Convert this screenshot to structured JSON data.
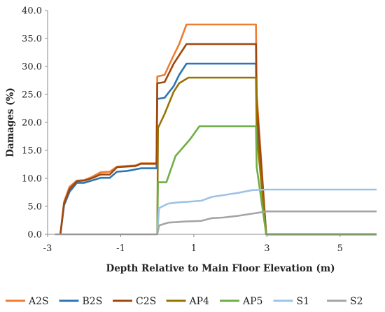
{
  "chart_data": {
    "type": "line",
    "xlabel": "Depth Relative to Main Floor Elevation (m)",
    "ylabel": "Damages (%)",
    "xlim": [
      -3,
      6
    ],
    "ylim": [
      0,
      40
    ],
    "x_ticks": [
      -3,
      -1,
      1,
      3,
      5
    ],
    "x_tick_labels": [
      "-3",
      "-1",
      "1",
      "3",
      "5"
    ],
    "y_ticks": [
      0,
      5,
      10,
      15,
      20,
      25,
      30,
      35,
      40
    ],
    "y_tick_labels": [
      "0.0",
      "5.0",
      "10.0",
      "15.0",
      "20.0",
      "25.0",
      "30.0",
      "35.0",
      "40.0"
    ],
    "grid": false,
    "legend_position": "bottom",
    "series": [
      {
        "name": "A2S",
        "color": "#ED7D31",
        "points": [
          [
            -2.65,
            0
          ],
          [
            -2.55,
            5.8
          ],
          [
            -2.4,
            8.5
          ],
          [
            -2.2,
            9.6
          ],
          [
            -2.0,
            9.7
          ],
          [
            -1.8,
            10.2
          ],
          [
            -1.55,
            11.1
          ],
          [
            -1.3,
            11.2
          ],
          [
            -1.1,
            12.1
          ],
          [
            -0.85,
            12.2
          ],
          [
            -0.6,
            12.3
          ],
          [
            -0.45,
            12.7
          ],
          [
            -0.02,
            12.7
          ],
          [
            0.0,
            28.2
          ],
          [
            0.2,
            28.5
          ],
          [
            0.45,
            32.0
          ],
          [
            0.6,
            34.0
          ],
          [
            0.8,
            37.5
          ],
          [
            2.7,
            37.5
          ],
          [
            2.72,
            25.0
          ],
          [
            2.98,
            0
          ],
          [
            6.0,
            0
          ]
        ]
      },
      {
        "name": "B2S",
        "color": "#2E75B6",
        "points": [
          [
            -2.65,
            0
          ],
          [
            -2.55,
            5.2
          ],
          [
            -2.4,
            7.6
          ],
          [
            -2.2,
            9.2
          ],
          [
            -2.0,
            9.2
          ],
          [
            -1.8,
            9.6
          ],
          [
            -1.55,
            10.1
          ],
          [
            -1.3,
            10.1
          ],
          [
            -1.1,
            11.2
          ],
          [
            -0.85,
            11.3
          ],
          [
            -0.6,
            11.6
          ],
          [
            -0.45,
            11.8
          ],
          [
            -0.02,
            11.8
          ],
          [
            0.0,
            24.2
          ],
          [
            0.2,
            24.4
          ],
          [
            0.45,
            26.5
          ],
          [
            0.6,
            28.5
          ],
          [
            0.8,
            30.5
          ],
          [
            2.7,
            30.5
          ],
          [
            2.72,
            22.0
          ],
          [
            2.98,
            0
          ],
          [
            6.0,
            0
          ]
        ]
      },
      {
        "name": "C2S",
        "color": "#9E480E",
        "points": [
          [
            -2.65,
            0
          ],
          [
            -2.55,
            5.5
          ],
          [
            -2.4,
            8.1
          ],
          [
            -2.2,
            9.5
          ],
          [
            -2.0,
            9.6
          ],
          [
            -1.8,
            10.0
          ],
          [
            -1.55,
            10.7
          ],
          [
            -1.3,
            10.7
          ],
          [
            -1.1,
            12.0
          ],
          [
            -0.85,
            12.1
          ],
          [
            -0.6,
            12.2
          ],
          [
            -0.45,
            12.6
          ],
          [
            -0.02,
            12.6
          ],
          [
            0.0,
            27.0
          ],
          [
            0.2,
            27.2
          ],
          [
            0.45,
            30.5
          ],
          [
            0.6,
            32.0
          ],
          [
            0.8,
            34.0
          ],
          [
            2.7,
            34.0
          ],
          [
            2.72,
            23.5
          ],
          [
            2.98,
            0
          ],
          [
            6.0,
            0
          ]
        ]
      },
      {
        "name": "AP4",
        "color": "#997300",
        "points": [
          [
            0.0,
            0
          ],
          [
            0.02,
            19.0
          ],
          [
            0.2,
            21.5
          ],
          [
            0.45,
            25.5
          ],
          [
            0.6,
            27.0
          ],
          [
            0.85,
            28.0
          ],
          [
            2.7,
            28.0
          ],
          [
            2.72,
            18.0
          ],
          [
            2.98,
            0
          ],
          [
            6.0,
            0
          ]
        ]
      },
      {
        "name": "AP5",
        "color": "#70AD47",
        "points": [
          [
            0.0,
            0
          ],
          [
            0.02,
            9.3
          ],
          [
            0.25,
            9.3
          ],
          [
            0.5,
            14.0
          ],
          [
            0.7,
            15.5
          ],
          [
            0.9,
            17.0
          ],
          [
            1.15,
            19.3
          ],
          [
            2.7,
            19.3
          ],
          [
            2.72,
            12.0
          ],
          [
            2.98,
            0
          ],
          [
            6.0,
            0
          ]
        ]
      },
      {
        "name": "S1",
        "color": "#9DC3E6",
        "points": [
          [
            0.0,
            0
          ],
          [
            0.05,
            4.7
          ],
          [
            0.3,
            5.5
          ],
          [
            0.55,
            5.7
          ],
          [
            0.8,
            5.8
          ],
          [
            1.2,
            6.0
          ],
          [
            1.5,
            6.7
          ],
          [
            1.8,
            7.0
          ],
          [
            2.2,
            7.4
          ],
          [
            2.6,
            7.9
          ],
          [
            3.0,
            8.0
          ],
          [
            6.0,
            8.0
          ]
        ]
      },
      {
        "name": "S2",
        "color": "#A5A5A5",
        "points": [
          [
            -2.8,
            0
          ],
          [
            0.0,
            0
          ],
          [
            0.05,
            1.6
          ],
          [
            0.3,
            2.1
          ],
          [
            0.55,
            2.2
          ],
          [
            0.8,
            2.3
          ],
          [
            1.2,
            2.4
          ],
          [
            1.5,
            2.9
          ],
          [
            1.8,
            3.0
          ],
          [
            2.2,
            3.3
          ],
          [
            2.6,
            3.7
          ],
          [
            3.0,
            4.1
          ],
          [
            6.0,
            4.1
          ]
        ]
      }
    ]
  }
}
